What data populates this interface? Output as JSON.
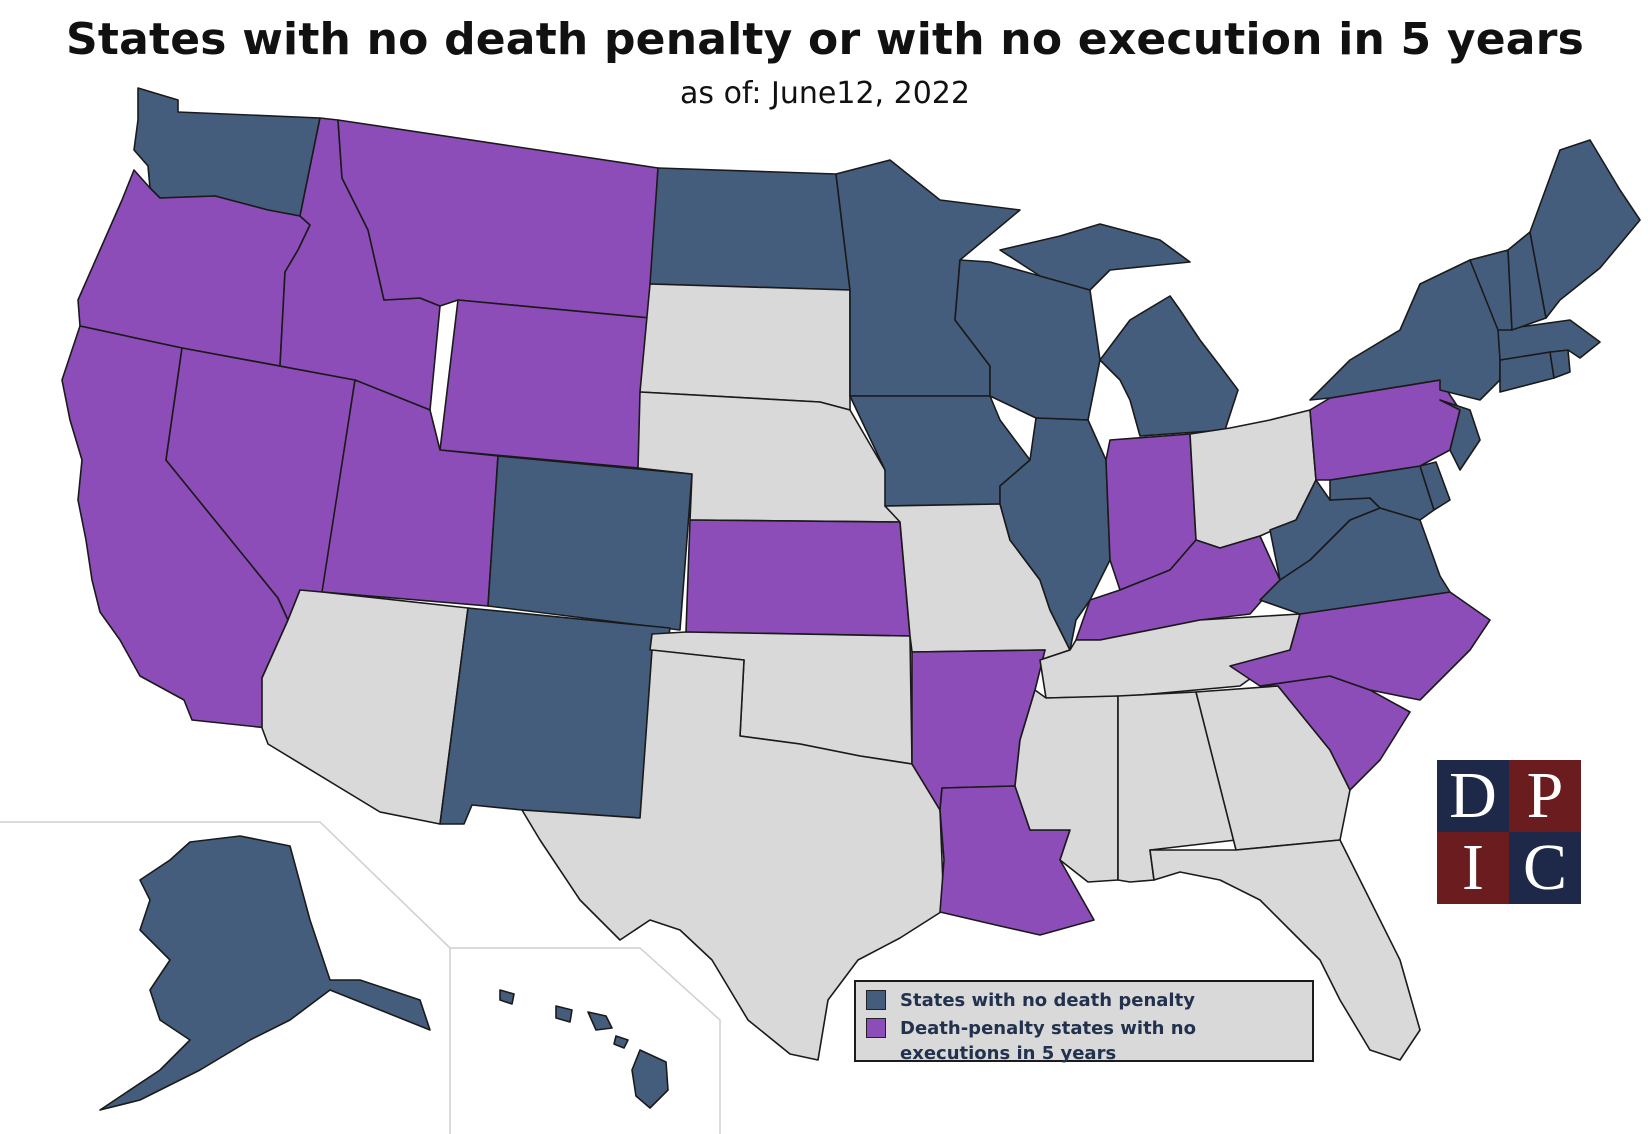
{
  "title": "States with no death penalty or with no execution in 5 years",
  "subtitle": "as of: June12, 2022",
  "colors": {
    "no_death_penalty": "#455d7d",
    "no_executions_5yr": "#8d4db8",
    "other": "#d9d9d9",
    "background": "#ffffff",
    "logo_dark": "#1e2848",
    "logo_red": "#6b1c1f"
  },
  "categories": {
    "no_death_penalty": [
      "WA",
      "ND",
      "MN",
      "WI",
      "MI",
      "IA",
      "IL",
      "CO",
      "NM",
      "NY",
      "VT",
      "NH",
      "ME",
      "MA",
      "CT",
      "RI",
      "NJ",
      "DE",
      "MD",
      "VA",
      "WV",
      "AK",
      "HI"
    ],
    "no_executions_5yr": [
      "OR",
      "CA",
      "NV",
      "ID",
      "MT",
      "WY",
      "UT",
      "KS",
      "AR",
      "LA",
      "IN",
      "KY",
      "PA",
      "NC",
      "SC"
    ]
  },
  "legend": {
    "items": [
      {
        "label": "States with no death penalty",
        "color_key": "no_death_penalty"
      },
      {
        "label": "Death-penalty states with no executions in 5 years",
        "color_key": "no_executions_5yr"
      }
    ]
  },
  "logo": {
    "letters": [
      "D",
      "P",
      "I",
      "C"
    ]
  }
}
